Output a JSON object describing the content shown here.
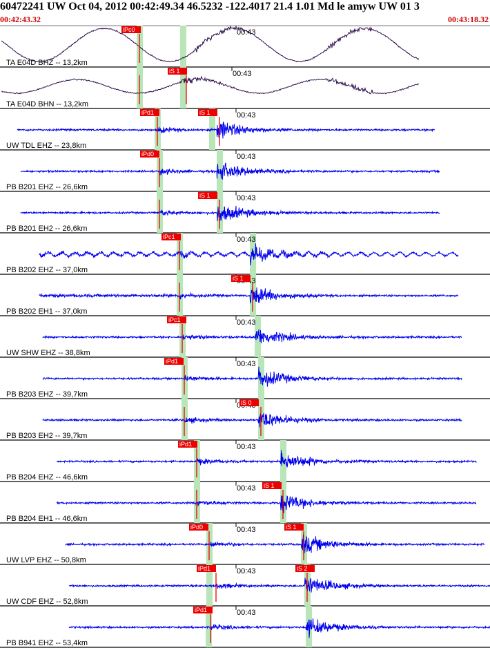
{
  "header": {
    "title": "60472241 UW Oct 04, 2012 00:42:49.34   46.5232 -122.4017 21.4 1.01 Md le amyw UW 01   3",
    "time_start": "00:42:43.32",
    "time_end": "00:43:18.32"
  },
  "colors": {
    "trace_broadband": "#2a0a48",
    "trace_short_period": "#0000ee",
    "pick_box": "#ee0000",
    "pick_window": "#b8e6b8"
  },
  "tick_label": "00:43",
  "channels": [
    {
      "label": "TA E04D BHZ -- 13,2km",
      "picks": [
        "iPc0",
        ""
      ],
      "wave": "long"
    },
    {
      "label": "TA E04D BHN -- 13,2km",
      "picks": [
        "iS 1"
      ],
      "wave": "long"
    },
    {
      "label": "UW TDL EHZ -- 23,8km",
      "picks": [
        "iPd1",
        "iS 1"
      ],
      "wave": "short"
    },
    {
      "label": "PB B201 EHZ -- 26,6km",
      "picks": [
        "iPd0"
      ],
      "wave": "short"
    },
    {
      "label": "PB B201 EH2 -- 26,6km",
      "picks": [
        "iS 1"
      ],
      "wave": "short"
    },
    {
      "label": "PB B202 EHZ -- 37,0km",
      "picks": [
        "iPc1"
      ],
      "wave": "short"
    },
    {
      "label": "PB B202 EH1 -- 37,0km",
      "picks": [
        "iS 1"
      ],
      "wave": "short"
    },
    {
      "label": "UW SHW EHZ -- 38,8km",
      "picks": [
        "iPc1"
      ],
      "wave": "short"
    },
    {
      "label": "PB B203 EHZ -- 39,7km",
      "picks": [
        "iPd1"
      ],
      "wave": "short"
    },
    {
      "label": "PB B203 EH2 -- 39,7km",
      "picks": [
        "iS 0"
      ],
      "wave": "short"
    },
    {
      "label": "PB B204 EHZ -- 46,6km",
      "picks": [
        "iPd1"
      ],
      "wave": "short"
    },
    {
      "label": "PB B204 EH1 -- 46,6km",
      "picks": [
        "iS 1"
      ],
      "wave": "short"
    },
    {
      "label": "UW LVP EHZ -- 50,8km",
      "picks": [
        "iPd0",
        "iS 1"
      ],
      "wave": "short"
    },
    {
      "label": "UW CDF EHZ -- 52,8km",
      "picks": [
        "iPd1",
        "iS 2"
      ],
      "wave": "short"
    },
    {
      "label": "PB B941 EHZ -- 53,4km",
      "picks": [
        "iPd1"
      ],
      "wave": "short"
    }
  ]
}
